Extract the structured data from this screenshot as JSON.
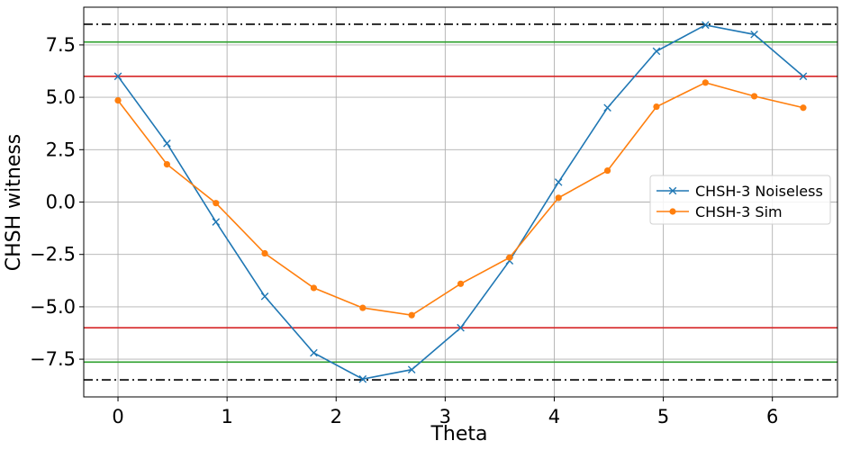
{
  "chart_data": {
    "type": "line",
    "xlabel": "Theta",
    "ylabel": "CHSH witness",
    "xlim": [
      -0.314,
      6.597
    ],
    "ylim": [
      -9.3,
      9.3
    ],
    "xticks": [
      0,
      1,
      2,
      3,
      4,
      5,
      6
    ],
    "yticks": [
      -7.5,
      -5.0,
      -2.5,
      0.0,
      2.5,
      5.0,
      7.5
    ],
    "ytick_labels": [
      "−7.5",
      "−5.0",
      "−2.5",
      "0.0",
      "2.5",
      "5.0",
      "7.5"
    ],
    "grid": true,
    "legend_position": "center-right",
    "x": [
      0,
      0.449,
      0.898,
      1.346,
      1.795,
      2.244,
      2.693,
      3.142,
      3.59,
      4.039,
      4.488,
      4.937,
      5.386,
      5.834,
      6.283
    ],
    "series": [
      {
        "name": "CHSH-3 Noiseless",
        "color": "#1f77b4",
        "marker": "x",
        "values": [
          6.0,
          2.8,
          -0.95,
          -4.5,
          -7.2,
          -8.45,
          -8.0,
          -6.0,
          -2.8,
          0.95,
          4.5,
          7.2,
          8.45,
          8.0,
          6.0
        ]
      },
      {
        "name": "CHSH-3 Sim",
        "color": "#ff7f0e",
        "marker": "o",
        "values": [
          4.85,
          1.8,
          -0.05,
          -2.45,
          -4.1,
          -5.05,
          -5.4,
          -3.9,
          -2.65,
          0.2,
          1.5,
          4.55,
          5.7,
          5.05,
          4.5
        ]
      }
    ],
    "reference_lines": [
      {
        "y": 8.485,
        "color": "#000000",
        "style": "dashdot"
      },
      {
        "y": -8.485,
        "color": "#000000",
        "style": "dashdot"
      },
      {
        "y": 7.64,
        "color": "#2ca02c",
        "style": "solid"
      },
      {
        "y": -7.64,
        "color": "#2ca02c",
        "style": "solid"
      },
      {
        "y": 6.0,
        "color": "#d62728",
        "style": "solid"
      },
      {
        "y": -6.0,
        "color": "#d62728",
        "style": "solid"
      }
    ]
  }
}
